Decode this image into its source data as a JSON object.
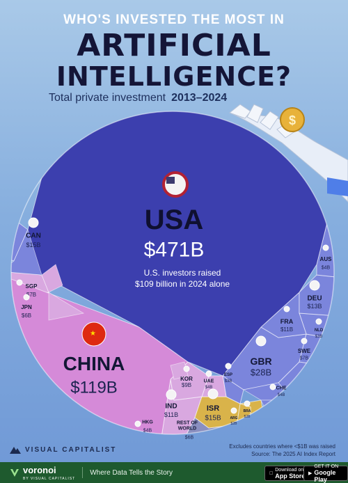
{
  "header": {
    "kicker": "WHO'S INVESTED THE MOST IN",
    "title_line1": "ARTIFICIAL",
    "title_line2": "INTELLIGENCE?",
    "subtitle": "Total private investment",
    "subtitle_years": "2013–2024"
  },
  "chart_data": {
    "type": "voronoi-treemap",
    "title": "WHO'S INVESTED THE MOST IN ARTIFICIAL INTELLIGENCE?",
    "subtitle": "Total private investment 2013–2024",
    "unit": "USD billions",
    "annotation": "U.S. investors raised $109 billion in 2024 alone",
    "cells": [
      {
        "code": "USA",
        "name": "USA",
        "label": "$471B",
        "value": 471
      },
      {
        "code": "CHN",
        "name": "CHINA",
        "label": "$119B",
        "value": 119
      },
      {
        "code": "GBR",
        "name": "GBR",
        "label": "$28B",
        "value": 28
      },
      {
        "code": "CAN",
        "name": "CAN",
        "label": "$15B",
        "value": 15
      },
      {
        "code": "ISR",
        "name": "ISR",
        "label": "$15B",
        "value": 15
      },
      {
        "code": "DEU",
        "name": "DEU",
        "label": "$13B",
        "value": 13
      },
      {
        "code": "IND",
        "name": "IND",
        "label": "$11B",
        "value": 11
      },
      {
        "code": "FRA",
        "name": "FRA",
        "label": "$11B",
        "value": 11
      },
      {
        "code": "KOR",
        "name": "KOR",
        "label": "$9B",
        "value": 9
      },
      {
        "code": "SGP",
        "name": "SGP",
        "label": "$7B",
        "value": 7
      },
      {
        "code": "SWE",
        "name": "SWE",
        "label": "$7B",
        "value": 7
      },
      {
        "code": "JPN",
        "name": "JPN",
        "label": "$6B",
        "value": 6
      },
      {
        "code": "ROW",
        "name": "REST OF WORLD",
        "label": "$6B",
        "value": 6
      },
      {
        "code": "UAE",
        "name": "UAE",
        "label": "$4B",
        "value": 4
      },
      {
        "code": "AUS",
        "name": "AUS",
        "label": "$4B",
        "value": 4
      },
      {
        "code": "HKG",
        "name": "HKG",
        "label": "$4B",
        "value": 4
      },
      {
        "code": "CHE",
        "name": "CHE",
        "label": "$4B",
        "value": 4
      },
      {
        "code": "ESP",
        "name": "ESP",
        "label": "$3B",
        "value": 3
      },
      {
        "code": "NLD",
        "name": "NLD",
        "label": "$3B",
        "value": 3
      },
      {
        "code": "ARG",
        "name": "ARG",
        "label": "$2B",
        "value": 2
      },
      {
        "code": "BRA",
        "name": "BRA",
        "label": "$2B",
        "value": 2
      }
    ]
  },
  "colors": {
    "usa": "#3c3fae",
    "china": "#d58ad8",
    "europe": "#7b85dc",
    "asia": "#d9a8e0",
    "israel": "#d9b34a",
    "americas_other": "#9aa6e6",
    "row": "#8a8fc0",
    "title": "#141537"
  },
  "footer": {
    "note_line1": "Excludes countries where <$1B was raised",
    "note_line2": "Source: The 2025 AI Index Report",
    "brand": "VISUAL CAPITALIST",
    "voronoi": "voronoi",
    "voronoi_by": "BY VISUAL CAPITALIST",
    "tagline": "Where Data Tells the Story",
    "appstore_small": "Download on the",
    "appstore_big": "App Store",
    "googleplay_small": "GET IT ON",
    "googleplay_big": "Google Play"
  }
}
